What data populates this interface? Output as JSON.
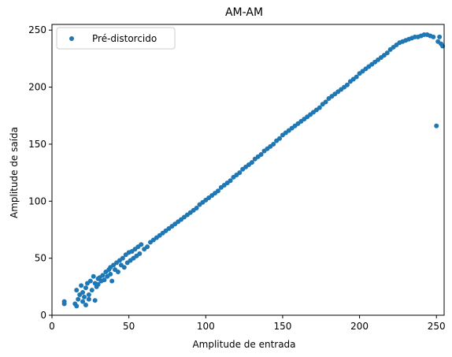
{
  "chart_data": {
    "type": "scatter",
    "title": "AM-AM",
    "xlabel": "Amplitude de entrada",
    "ylabel": "Amplitude de saída",
    "xlim": [
      0,
      255
    ],
    "ylim": [
      0,
      255
    ],
    "xticks": [
      0,
      50,
      100,
      150,
      200,
      250
    ],
    "yticks": [
      0,
      50,
      100,
      150,
      200,
      250
    ],
    "grid": false,
    "legend_position": "top-left",
    "series": [
      {
        "name": "Pré-distorcido",
        "color": "#1f77b4",
        "marker": "circle",
        "x": [
          8,
          8,
          15,
          16,
          16,
          17,
          18,
          19,
          20,
          20,
          21,
          22,
          22,
          23,
          24,
          24,
          25,
          26,
          27,
          28,
          28,
          29,
          30,
          30,
          31,
          32,
          33,
          34,
          35,
          36,
          37,
          38,
          38,
          39,
          40,
          41,
          42,
          43,
          44,
          45,
          46,
          47,
          48,
          49,
          50,
          51,
          52,
          53,
          54,
          55,
          56,
          57,
          58,
          60,
          62,
          64,
          66,
          68,
          70,
          72,
          74,
          76,
          78,
          80,
          82,
          84,
          86,
          88,
          90,
          92,
          94,
          96,
          98,
          100,
          102,
          104,
          106,
          108,
          110,
          112,
          114,
          116,
          118,
          120,
          122,
          124,
          126,
          128,
          130,
          132,
          134,
          136,
          138,
          140,
          142,
          144,
          146,
          148,
          150,
          152,
          154,
          156,
          158,
          160,
          162,
          164,
          166,
          168,
          170,
          172,
          174,
          176,
          178,
          180,
          182,
          184,
          186,
          188,
          190,
          192,
          194,
          196,
          198,
          200,
          202,
          204,
          206,
          208,
          210,
          212,
          214,
          216,
          218,
          220,
          222,
          224,
          226,
          228,
          230,
          232,
          234,
          236,
          238,
          240,
          242,
          244,
          246,
          248,
          250,
          251,
          252,
          253,
          254
        ],
        "y": [
          10,
          12,
          10,
          22,
          8,
          14,
          18,
          26,
          12,
          20,
          16,
          24,
          9,
          28,
          14,
          18,
          30,
          22,
          34,
          13,
          28,
          25,
          32,
          27,
          33,
          30,
          35,
          31,
          38,
          34,
          40,
          36,
          42,
          30,
          44,
          40,
          46,
          38,
          48,
          44,
          50,
          42,
          53,
          46,
          55,
          48,
          56,
          50,
          58,
          52,
          60,
          54,
          62,
          58,
          60,
          64,
          66,
          68,
          70,
          72,
          74,
          76,
          78,
          80,
          82,
          84,
          86,
          88,
          90,
          92,
          94,
          97,
          99,
          101,
          103,
          105,
          107,
          109,
          112,
          114,
          116,
          118,
          121,
          123,
          125,
          128,
          130,
          132,
          134,
          137,
          139,
          141,
          144,
          146,
          148,
          150,
          153,
          155,
          158,
          160,
          162,
          164,
          166,
          168,
          170,
          172,
          174,
          176,
          178,
          180,
          182,
          185,
          187,
          190,
          192,
          194,
          196,
          198,
          200,
          202,
          205,
          207,
          209,
          212,
          214,
          216,
          218,
          220,
          222,
          224,
          226,
          228,
          230,
          233,
          235,
          237,
          239,
          240,
          241,
          242,
          243,
          244,
          244,
          245,
          246,
          246,
          245,
          244,
          166,
          240,
          244,
          238,
          236
        ]
      }
    ]
  }
}
